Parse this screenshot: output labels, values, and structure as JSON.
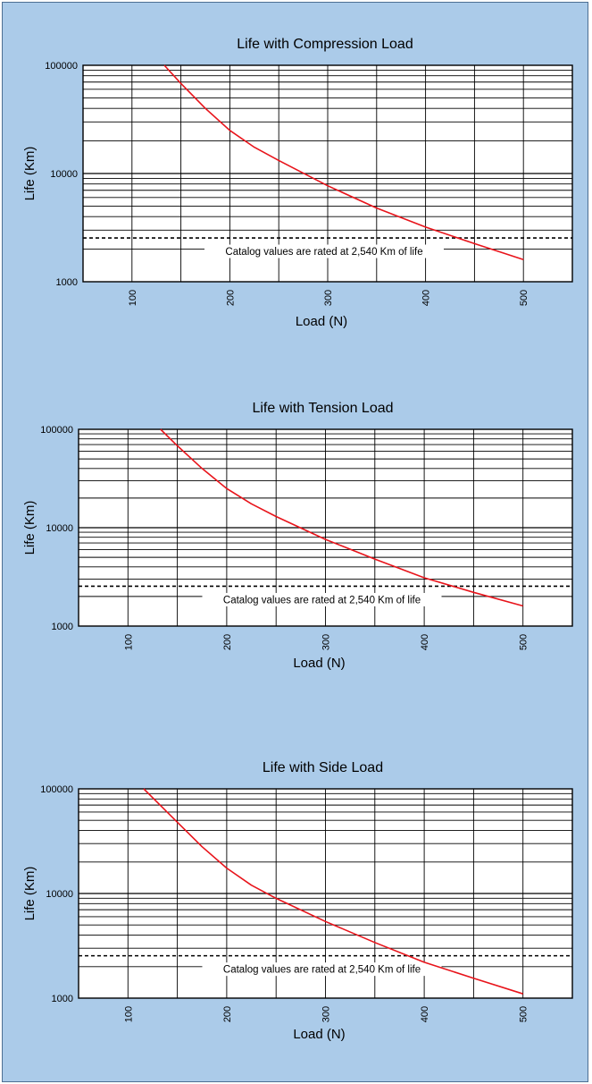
{
  "chart_data": [
    {
      "type": "line",
      "title": "Life with Compression Load",
      "xlabel": "Load (N)",
      "ylabel": "Life (Km)",
      "xlim": [
        50,
        550
      ],
      "ylim": [
        1000,
        100000
      ],
      "yscale": "log",
      "grid": true,
      "xticks": [
        "100",
        "200",
        "300",
        "400",
        "500"
      ],
      "yticks": [
        "1000",
        "10000",
        "100000"
      ],
      "reference_line": {
        "value": 2540,
        "style": "dashed"
      },
      "annotation": "Catalog values are rated at 2,540 Km of life",
      "series": [
        {
          "color": "#e8141b",
          "x": [
            133,
            150,
            175,
            200,
            225,
            250,
            300,
            350,
            400,
            450,
            500
          ],
          "y": [
            100000,
            68000,
            40000,
            25000,
            17500,
            13200,
            7700,
            4800,
            3200,
            2250,
            1600
          ]
        }
      ]
    },
    {
      "type": "line",
      "title": "Life with Tension Load",
      "xlabel": "Load (N)",
      "ylabel": "Life (Km)",
      "xlim": [
        50,
        550
      ],
      "ylim": [
        1000,
        100000
      ],
      "yscale": "log",
      "grid": true,
      "xticks": [
        "100",
        "200",
        "300",
        "400",
        "500"
      ],
      "yticks": [
        "1000",
        "10000",
        "100000"
      ],
      "reference_line": {
        "value": 2540,
        "style": "dashed"
      },
      "annotation": "Catalog values are rated at 2,540 Km of life",
      "series": [
        {
          "color": "#e8141b",
          "x": [
            133,
            150,
            175,
            200,
            225,
            250,
            300,
            350,
            400,
            450,
            500
          ],
          "y": [
            100000,
            68000,
            40000,
            25000,
            17500,
            13000,
            7600,
            4800,
            3100,
            2200,
            1600
          ]
        }
      ]
    },
    {
      "type": "line",
      "title": "Life with Side Load",
      "xlabel": "Load (N)",
      "ylabel": "Life (Km)",
      "xlim": [
        50,
        550
      ],
      "ylim": [
        1000,
        100000
      ],
      "yscale": "log",
      "grid": true,
      "xticks": [
        "100",
        "200",
        "300",
        "400",
        "500"
      ],
      "yticks": [
        "1000",
        "10000",
        "100000"
      ],
      "reference_line": {
        "value": 2540,
        "style": "dashed"
      },
      "annotation": "Catalog values are rated at 2,540 Km of life",
      "series": [
        {
          "color": "#e8141b",
          "x": [
            116,
            150,
            175,
            200,
            225,
            250,
            300,
            350,
            400,
            450,
            500
          ],
          "y": [
            100000,
            48000,
            28000,
            17500,
            12000,
            9000,
            5400,
            3400,
            2200,
            1550,
            1100
          ]
        }
      ]
    }
  ]
}
